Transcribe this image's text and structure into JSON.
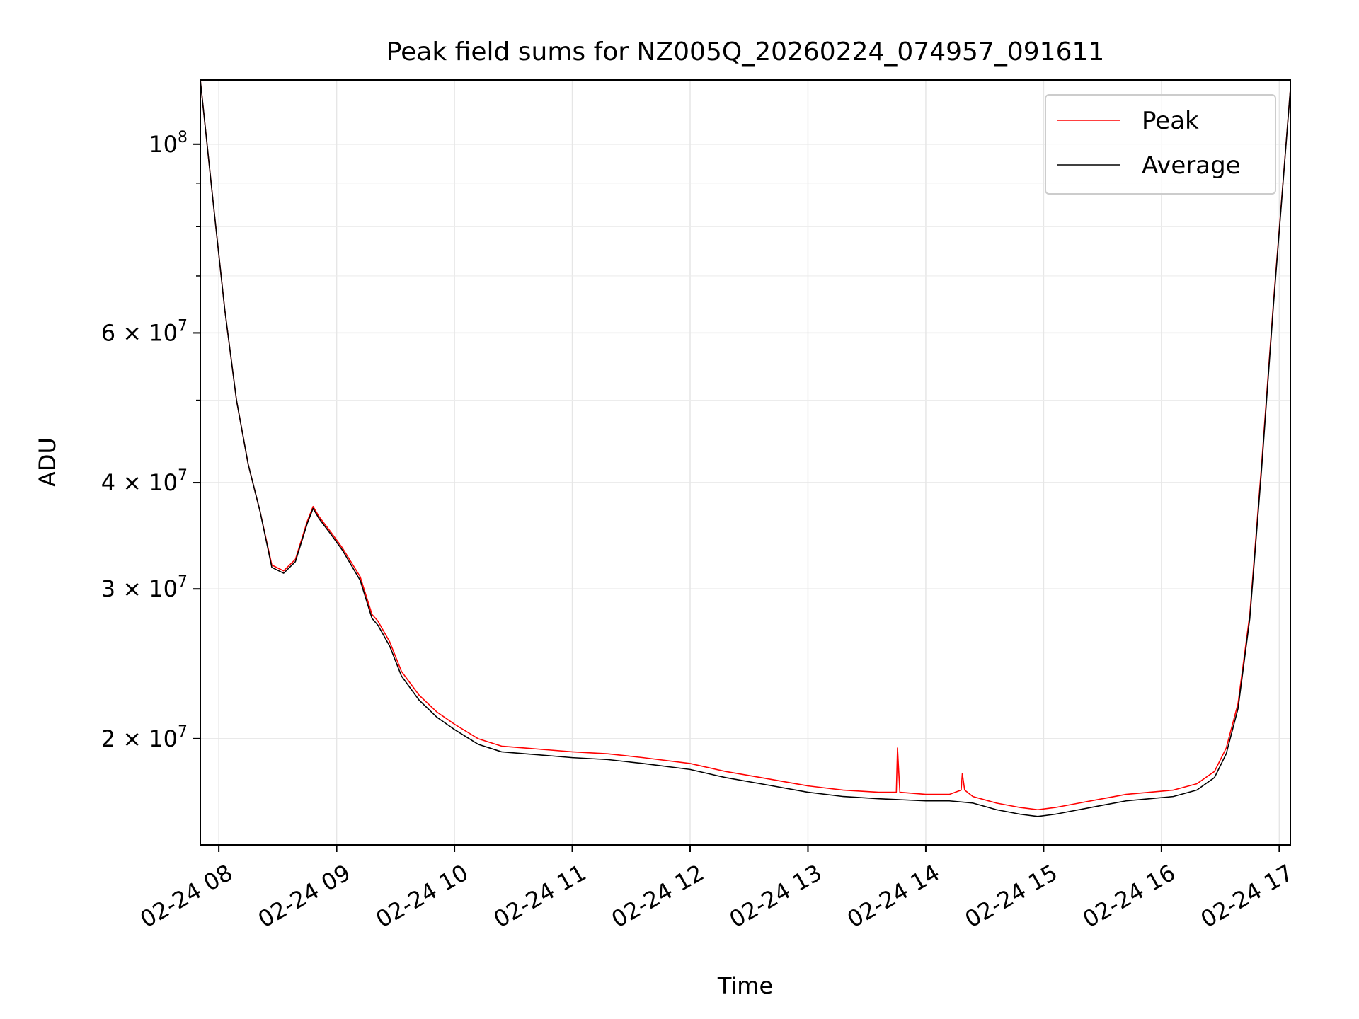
{
  "chart_data": {
    "type": "line",
    "title": "Peak field sums for NZ005Q_20260224_074957_091611",
    "xlabel": "Time",
    "ylabel": "ADU",
    "yscale": "log",
    "xlim": [
      7.843,
      17.094
    ],
    "ylim": [
      15000000,
      119000000
    ],
    "grid": true,
    "legend_position": "top-right",
    "x_unit": "hours of 2026-02-24 (decimal)",
    "x_ticks": [
      {
        "value": 8,
        "label": "02-24 08"
      },
      {
        "value": 9,
        "label": "02-24 09"
      },
      {
        "value": 10,
        "label": "02-24 10"
      },
      {
        "value": 11,
        "label": "02-24 11"
      },
      {
        "value": 12,
        "label": "02-24 12"
      },
      {
        "value": 13,
        "label": "02-24 13"
      },
      {
        "value": 14,
        "label": "02-24 14"
      },
      {
        "value": 15,
        "label": "02-24 15"
      },
      {
        "value": 16,
        "label": "02-24 16"
      },
      {
        "value": 17,
        "label": "02-24 17"
      }
    ],
    "y_major_ticks": [
      {
        "value": 100000000,
        "base": "10",
        "exp": "8",
        "mult": ""
      },
      {
        "value": 60000000,
        "base": "10",
        "exp": "7",
        "mult": "6 × "
      },
      {
        "value": 40000000,
        "base": "10",
        "exp": "7",
        "mult": "4 × "
      },
      {
        "value": 30000000,
        "base": "10",
        "exp": "7",
        "mult": "3 × "
      },
      {
        "value": 20000000,
        "base": "10",
        "exp": "7",
        "mult": "2 × "
      }
    ],
    "y_minor_ticks": [
      90000000,
      80000000,
      70000000,
      50000000
    ],
    "series": [
      {
        "name": "Peak",
        "color": "#ff0000",
        "x": [
          7.843,
          7.95,
          8.05,
          8.15,
          8.25,
          8.35,
          8.45,
          8.55,
          8.65,
          8.75,
          8.8,
          8.85,
          8.95,
          9.05,
          9.2,
          9.3,
          9.35,
          9.45,
          9.55,
          9.7,
          9.85,
          10.0,
          10.2,
          10.4,
          10.6,
          10.8,
          11.0,
          11.3,
          11.6,
          12.0,
          12.3,
          12.6,
          13.0,
          13.3,
          13.6,
          13.75,
          13.76,
          13.78,
          14.0,
          14.2,
          14.3,
          14.31,
          14.33,
          14.4,
          14.6,
          14.8,
          14.95,
          15.1,
          15.3,
          15.5,
          15.7,
          15.9,
          16.1,
          16.3,
          16.45,
          16.55,
          16.65,
          16.75,
          16.85,
          16.95,
          17.094
        ],
        "y": [
          119000000,
          86000000,
          64000000,
          50000000,
          42000000,
          37000000,
          32000000,
          31500000,
          32500000,
          36000000,
          37500000,
          36500000,
          35000000,
          33500000,
          31000000,
          28000000,
          27500000,
          26000000,
          24000000,
          22500000,
          21500000,
          20800000,
          20000000,
          19600000,
          19500000,
          19400000,
          19300000,
          19200000,
          19000000,
          18700000,
          18300000,
          18000000,
          17600000,
          17400000,
          17300000,
          17300000,
          19500000,
          17300000,
          17200000,
          17200000,
          17400000,
          18200000,
          17400000,
          17100000,
          16800000,
          16600000,
          16500000,
          16600000,
          16800000,
          17000000,
          17200000,
          17300000,
          17400000,
          17700000,
          18300000,
          19500000,
          22000000,
          28000000,
          42000000,
          65000000,
          116000000
        ]
      },
      {
        "name": "Average",
        "color": "#000000",
        "x": [
          7.843,
          7.95,
          8.05,
          8.15,
          8.25,
          8.35,
          8.45,
          8.55,
          8.65,
          8.75,
          8.8,
          8.85,
          8.95,
          9.05,
          9.2,
          9.3,
          9.35,
          9.45,
          9.55,
          9.7,
          9.85,
          10.0,
          10.2,
          10.4,
          10.6,
          10.8,
          11.0,
          11.3,
          11.6,
          12.0,
          12.3,
          12.6,
          13.0,
          13.3,
          13.6,
          14.0,
          14.2,
          14.4,
          14.6,
          14.8,
          14.95,
          15.1,
          15.3,
          15.5,
          15.7,
          15.9,
          16.1,
          16.3,
          16.45,
          16.55,
          16.65,
          16.75,
          16.85,
          16.95,
          17.094
        ],
        "y": [
          119000000,
          86000000,
          64000000,
          50000000,
          42000000,
          37000000,
          31800000,
          31300000,
          32300000,
          35800000,
          37300000,
          36300000,
          34800000,
          33300000,
          30700000,
          27700000,
          27200000,
          25700000,
          23700000,
          22200000,
          21200000,
          20500000,
          19700000,
          19300000,
          19200000,
          19100000,
          19000000,
          18900000,
          18700000,
          18400000,
          18000000,
          17700000,
          17300000,
          17100000,
          17000000,
          16900000,
          16900000,
          16800000,
          16500000,
          16300000,
          16200000,
          16300000,
          16500000,
          16700000,
          16900000,
          17000000,
          17100000,
          17400000,
          18000000,
          19200000,
          21700000,
          27700000,
          41500000,
          64500000,
          116000000
        ]
      }
    ]
  }
}
